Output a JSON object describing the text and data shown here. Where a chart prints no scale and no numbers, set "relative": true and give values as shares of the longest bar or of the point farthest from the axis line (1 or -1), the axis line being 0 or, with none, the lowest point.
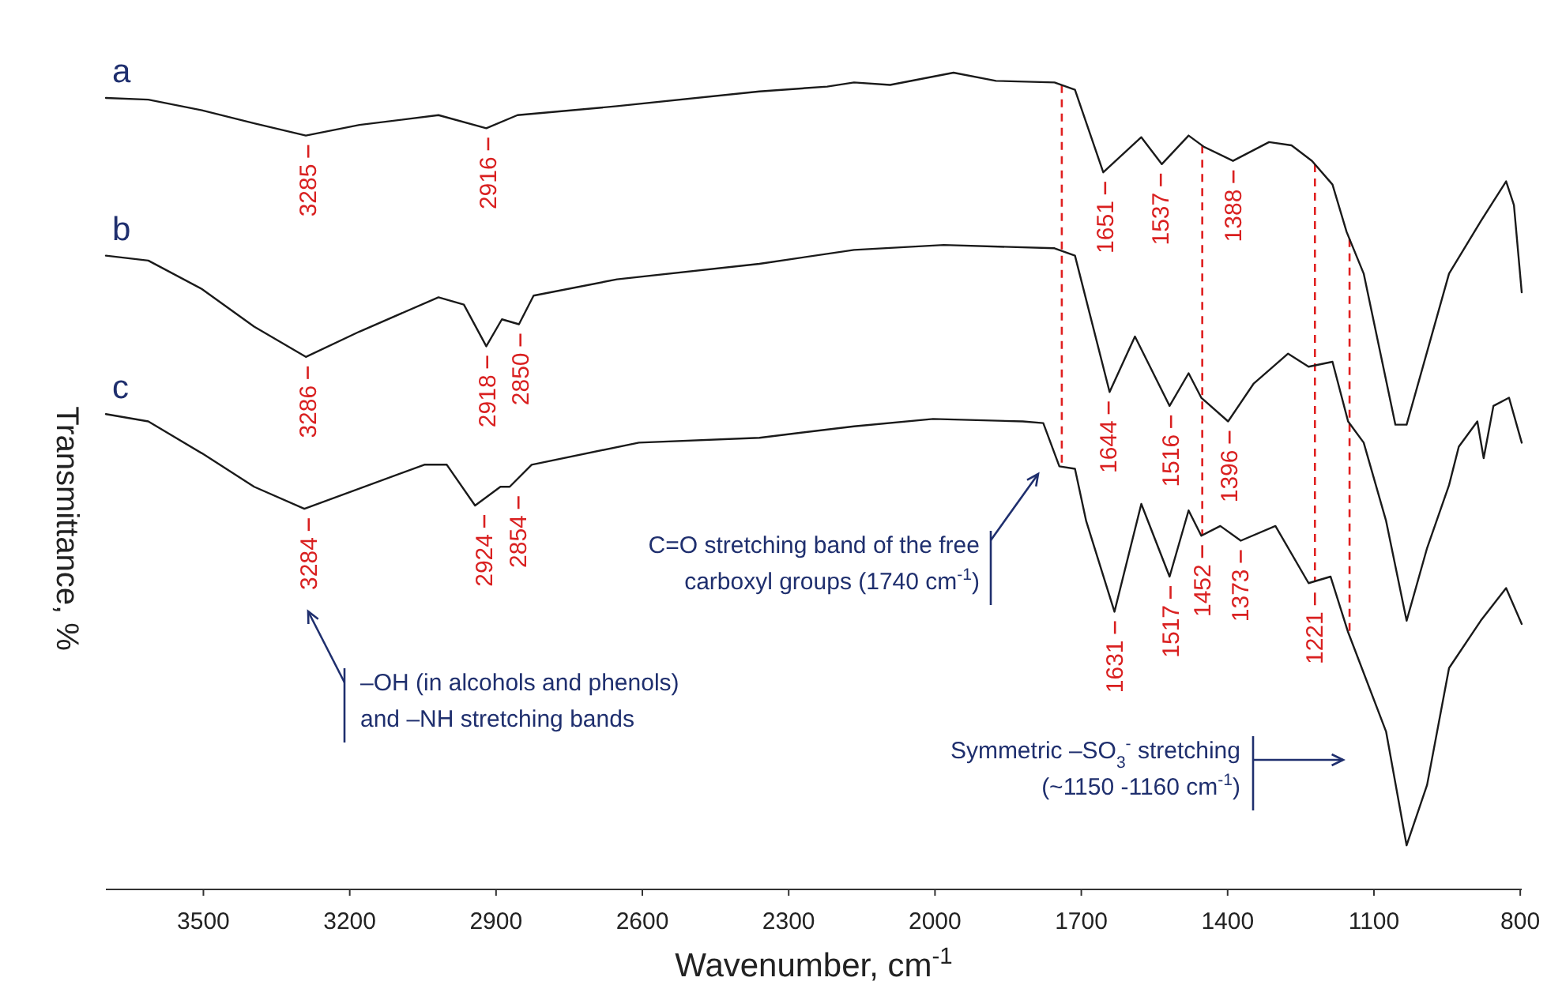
{
  "chart_data": {
    "type": "line",
    "relative": true,
    "xlabel": "Wavenumber, cm$^{-1}$",
    "ylabel": "Transmittance, %",
    "xlim": [
      3700,
      797
    ],
    "xticks": [
      3500,
      3200,
      2900,
      2600,
      2300,
      2000,
      1700,
      1400,
      1100,
      800
    ],
    "marker": "none",
    "line_style": "solid",
    "series": [
      {
        "name": "a",
        "color": "#1a1a1a",
        "x": [
          3700,
          3613,
          3503,
          3396,
          3290,
          3180,
          3018,
          2920,
          2856,
          2652,
          2360,
          2221,
          2166,
          2092,
          1962,
          1875,
          1755,
          1713,
          1655,
          1577,
          1535,
          1480,
          1448,
          1389,
          1315,
          1269,
          1227,
          1185,
          1156,
          1121,
          1056,
          1033,
          946,
          881,
          829,
          813,
          797
        ],
        "values": [
          0.969,
          0.967,
          0.954,
          0.938,
          0.923,
          0.936,
          0.948,
          0.932,
          0.948,
          0.959,
          0.977,
          0.983,
          0.988,
          0.985,
          1.0,
          0.99,
          0.988,
          0.979,
          0.878,
          0.921,
          0.888,
          0.923,
          0.909,
          0.892,
          0.915,
          0.911,
          0.892,
          0.863,
          0.805,
          0.754,
          0.569,
          0.569,
          0.754,
          0.818,
          0.867,
          0.838,
          0.731
        ]
      },
      {
        "name": "b",
        "color": "#1a1a1a",
        "x": [
          3700,
          3613,
          3503,
          3396,
          3290,
          3180,
          3018,
          2966,
          2920,
          2888,
          2853,
          2823,
          2652,
          2360,
          2166,
          1982,
          1755,
          1713,
          1642,
          1590,
          1519,
          1480,
          1454,
          1399,
          1347,
          1276,
          1234,
          1185,
          1153,
          1121,
          1075,
          1033,
          991,
          946,
          926,
          888,
          875,
          855,
          823,
          797
        ],
        "values": [
          0.776,
          0.77,
          0.735,
          0.689,
          0.652,
          0.683,
          0.725,
          0.716,
          0.665,
          0.698,
          0.692,
          0.727,
          0.747,
          0.766,
          0.783,
          0.789,
          0.785,
          0.776,
          0.609,
          0.677,
          0.592,
          0.632,
          0.602,
          0.573,
          0.619,
          0.656,
          0.64,
          0.646,
          0.573,
          0.547,
          0.451,
          0.329,
          0.418,
          0.495,
          0.542,
          0.573,
          0.528,
          0.592,
          0.602,
          0.547
        ]
      },
      {
        "name": "c",
        "color": "#1a1a1a",
        "x": [
          3700,
          3613,
          3503,
          3396,
          3293,
          3047,
          3001,
          2943,
          2891,
          2872,
          2827,
          2607,
          2360,
          2166,
          2004,
          1820,
          1778,
          1745,
          1713,
          1690,
          1632,
          1577,
          1519,
          1480,
          1454,
          1415,
          1373,
          1302,
          1234,
          1189,
          1153,
          1075,
          1033,
          991,
          946,
          881,
          829,
          797
        ],
        "values": [
          0.582,
          0.573,
          0.534,
          0.493,
          0.466,
          0.52,
          0.52,
          0.47,
          0.493,
          0.493,
          0.52,
          0.547,
          0.553,
          0.567,
          0.576,
          0.573,
          0.571,
          0.518,
          0.515,
          0.451,
          0.34,
          0.472,
          0.383,
          0.464,
          0.433,
          0.445,
          0.427,
          0.445,
          0.375,
          0.383,
          0.315,
          0.193,
          0.054,
          0.128,
          0.271,
          0.329,
          0.369,
          0.325
        ]
      }
    ],
    "ref_lines": [
      {
        "axis": "x",
        "value": 1740,
        "color": "#e02020",
        "line_style": "dashed"
      },
      {
        "axis": "x",
        "value": 1452,
        "color": "#e02020",
        "line_style": "dashed"
      },
      {
        "axis": "x",
        "value": 1221,
        "color": "#e02020",
        "line_style": "dashed"
      },
      {
        "axis": "x",
        "value": 1150,
        "color": "#e02020",
        "line_style": "dashed"
      }
    ],
    "annotations": [
      {
        "text": "3285",
        "x": 3285,
        "y": 0.923
      },
      {
        "text": "2916",
        "x": 2916,
        "y": 0.932
      },
      {
        "text": "1651",
        "x": 1651,
        "y": 0.878
      },
      {
        "text": "1537",
        "x": 1537,
        "y": 0.888
      },
      {
        "text": "1388",
        "x": 1388,
        "y": 0.892
      },
      {
        "text": "3286",
        "x": 3286,
        "y": 0.652
      },
      {
        "text": "2918",
        "x": 2918,
        "y": 0.665
      },
      {
        "text": "2850",
        "x": 2850,
        "y": 0.692
      },
      {
        "text": "1644",
        "x": 1644,
        "y": 0.609
      },
      {
        "text": "1516",
        "x": 1516,
        "y": 0.592
      },
      {
        "text": "1396",
        "x": 1396,
        "y": 0.573
      },
      {
        "text": "3284",
        "x": 3284,
        "y": 0.466
      },
      {
        "text": "2924",
        "x": 2924,
        "y": 0.47
      },
      {
        "text": "2854",
        "x": 2854,
        "y": 0.493
      },
      {
        "text": "1631",
        "x": 1631,
        "y": 0.34
      },
      {
        "text": "1517",
        "x": 1517,
        "y": 0.383
      },
      {
        "text": "1452",
        "x": 1452,
        "y": 0.433
      },
      {
        "text": "1373",
        "x": 1373,
        "y": 0.427
      },
      {
        "text": "1221",
        "x": 1221,
        "y": 0.375
      },
      "C=O stretching band of the free carboxyl groups (1740 cm$^{-1}$)",
      "–OH (in alcohols and phenols) and –NH stretching bands",
      "Symmetric –SO$_{3}$$^{-}$ stretching (~1150 -1160 cm$^{-1}$)"
    ]
  }
}
